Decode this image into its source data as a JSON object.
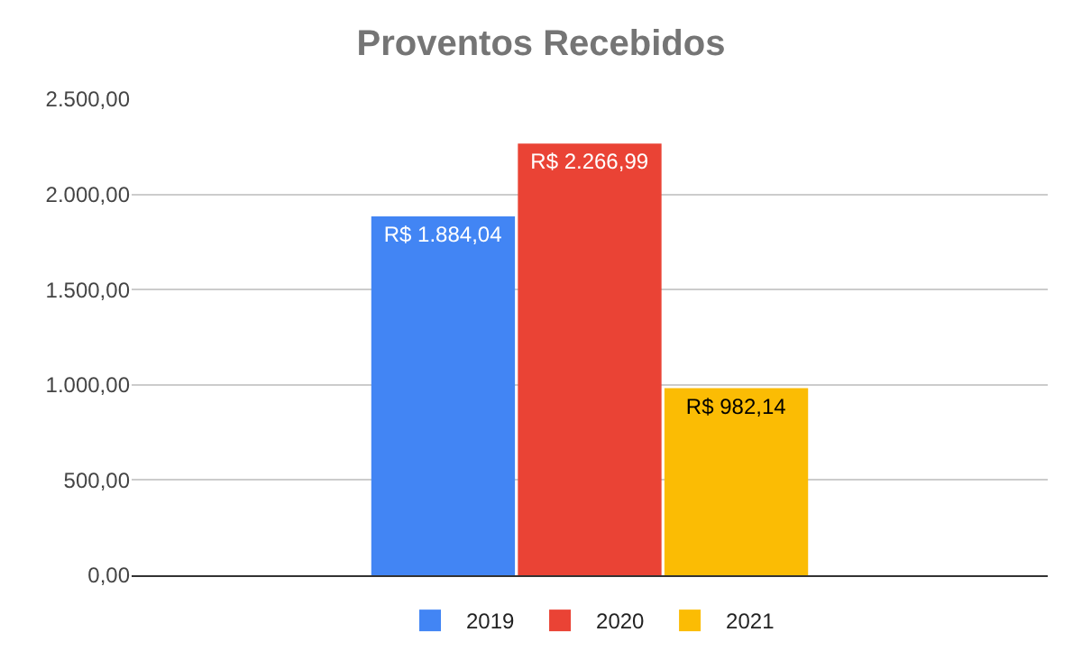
{
  "chart_data": {
    "type": "bar",
    "title": "Proventos Recebidos",
    "categories": [
      null
    ],
    "series": [
      {
        "name": "2019",
        "color": "#4285f4",
        "values": [
          1884.04
        ],
        "value_labels": [
          "R$ 1.884,04"
        ]
      },
      {
        "name": "2020",
        "color": "#ea4335",
        "values": [
          2266.99
        ],
        "value_labels": [
          "R$ 2.266,99"
        ]
      },
      {
        "name": "2021",
        "color": "#fbbc04",
        "values": [
          982.14
        ],
        "value_labels": [
          "R$ 982,14"
        ]
      }
    ],
    "ylim": [
      0,
      2500
    ],
    "yticks": [
      {
        "value": 0,
        "label": "0,00"
      },
      {
        "value": 500,
        "label": "500,00"
      },
      {
        "value": 1000,
        "label": "1.000,00"
      },
      {
        "value": 1500,
        "label": "1.500,00"
      },
      {
        "value": 2000,
        "label": "2.000,00"
      },
      {
        "value": 2500,
        "label": "2.500,00"
      }
    ],
    "grid": "y",
    "legend": "bottom"
  }
}
